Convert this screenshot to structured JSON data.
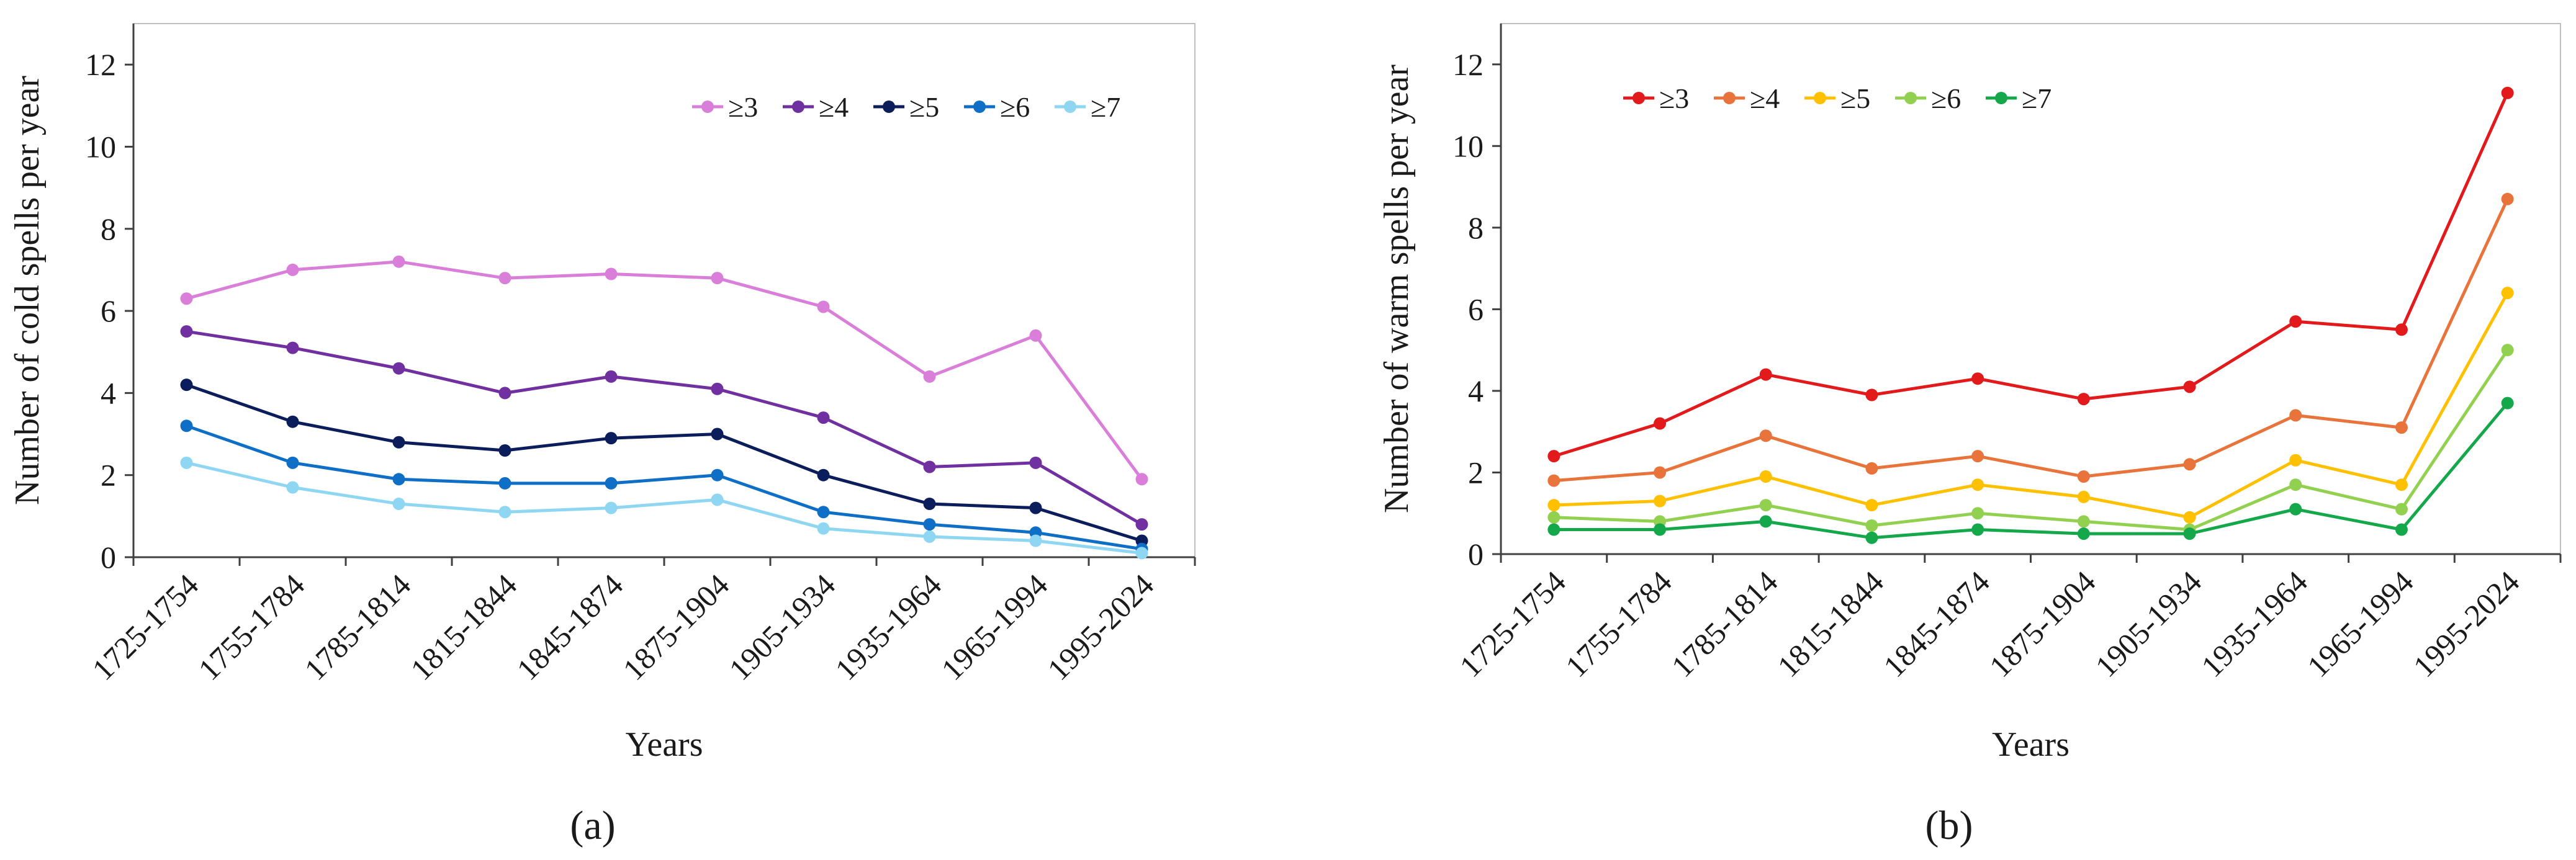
{
  "chart_data": [
    {
      "type": "line",
      "panel_label": "(a)",
      "title": "",
      "xlabel": "Years",
      "ylabel": "Number of cold spells per year",
      "ylim": [
        0,
        13
      ],
      "yticks": [
        0,
        2,
        4,
        6,
        8,
        10,
        12
      ],
      "grid": false,
      "legend_position": "top-right",
      "categories": [
        "1725-1754",
        "1755-1784",
        "1785-1814",
        "1815-1844",
        "1845-1874",
        "1875-1904",
        "1905-1934",
        "1935-1964",
        "1965-1994",
        "1995-2024"
      ],
      "series": [
        {
          "name": "≥3",
          "color": "#d97fd9",
          "values": [
            6.3,
            7.0,
            7.2,
            6.8,
            6.9,
            6.8,
            6.1,
            4.4,
            5.4,
            1.9
          ]
        },
        {
          "name": "≥4",
          "color": "#7030a0",
          "values": [
            5.5,
            5.1,
            4.6,
            4.0,
            4.4,
            4.1,
            3.4,
            2.2,
            2.3,
            0.8
          ]
        },
        {
          "name": "≥5",
          "color": "#0b1e5b",
          "values": [
            4.2,
            3.3,
            2.8,
            2.6,
            2.9,
            3.0,
            2.0,
            1.3,
            1.2,
            0.4
          ]
        },
        {
          "name": "≥6",
          "color": "#0f6fc6",
          "values": [
            3.2,
            2.3,
            1.9,
            1.8,
            1.8,
            2.0,
            1.1,
            0.8,
            0.6,
            0.2
          ]
        },
        {
          "name": "≥7",
          "color": "#8fd6f2",
          "values": [
            2.3,
            1.7,
            1.3,
            1.1,
            1.2,
            1.4,
            0.7,
            0.5,
            0.4,
            0.1
          ]
        }
      ]
    },
    {
      "type": "line",
      "panel_label": "(b)",
      "title": "",
      "xlabel": "Years",
      "ylabel": "Number of warm spells per year",
      "ylim": [
        0,
        13
      ],
      "yticks": [
        0,
        2,
        4,
        6,
        8,
        10,
        12
      ],
      "grid": false,
      "legend_position": "top-left",
      "categories": [
        "1725-1754",
        "1755-1784",
        "1785-1814",
        "1815-1844",
        "1845-1874",
        "1875-1904",
        "1905-1934",
        "1935-1964",
        "1965-1994",
        "1995-2024"
      ],
      "series": [
        {
          "name": "≥3",
          "color": "#e31a1c",
          "values": [
            2.4,
            3.2,
            4.4,
            3.9,
            4.3,
            3.8,
            4.1,
            5.7,
            5.5,
            11.3
          ]
        },
        {
          "name": "≥4",
          "color": "#e8743b",
          "values": [
            1.8,
            2.0,
            2.9,
            2.1,
            2.4,
            1.9,
            2.2,
            3.4,
            3.1,
            8.7
          ]
        },
        {
          "name": "≥5",
          "color": "#ffc000",
          "values": [
            1.2,
            1.3,
            1.9,
            1.2,
            1.7,
            1.4,
            0.9,
            2.3,
            1.7,
            6.4
          ]
        },
        {
          "name": "≥6",
          "color": "#92d050",
          "values": [
            0.9,
            0.8,
            1.2,
            0.7,
            1.0,
            0.8,
            0.6,
            1.7,
            1.1,
            5.0
          ]
        },
        {
          "name": "≥7",
          "color": "#14a84b",
          "values": [
            0.6,
            0.6,
            0.8,
            0.4,
            0.6,
            0.5,
            0.5,
            1.1,
            0.6,
            3.7
          ]
        }
      ]
    }
  ]
}
